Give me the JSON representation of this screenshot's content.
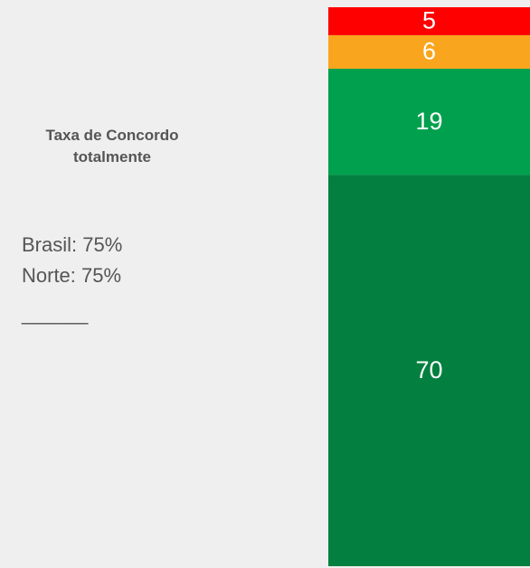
{
  "chart_data": {
    "type": "bar",
    "stacked": true,
    "title": "Taxa de Concordo totalmente",
    "annotations": [
      "Brasil: 75%",
      "Norte: 75%",
      "______"
    ],
    "categories": [
      null
    ],
    "series": [
      {
        "color": "#03803f",
        "values": [
          70
        ]
      },
      {
        "color": "#00a04e",
        "values": [
          19
        ]
      },
      {
        "color": "#f9a51e",
        "values": [
          6
        ]
      },
      {
        "color": "#ff0000",
        "values": [
          5
        ]
      }
    ],
    "ylim": [
      0,
      100
    ]
  }
}
